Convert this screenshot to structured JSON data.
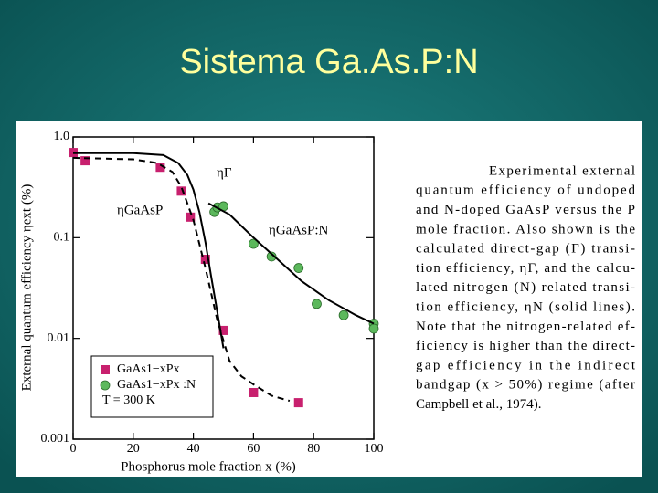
{
  "title": "Sistema Ga.As.P:N",
  "chart_data": {
    "type": "scatter",
    "x_label": "Phosphorus mole fraction x (%)",
    "y_label": "External quantum efficiency ηext (%)",
    "xlim": [
      0,
      100
    ],
    "xticks": [
      0,
      20,
      40,
      60,
      80,
      100
    ],
    "ylim": [
      0.001,
      1
    ],
    "log_y": true,
    "yticks": [
      {
        "value": 1,
        "label": "1.0"
      },
      0.1,
      0.01,
      0.001
    ],
    "annotation": "T = 300 K",
    "series": [
      {
        "name": "GaAs1−xPx",
        "color": "#c8206e",
        "marker": "square",
        "x": [
          0,
          4,
          29,
          36,
          39,
          44,
          50,
          60,
          75
        ],
        "values": [
          0.7,
          0.58,
          0.5,
          0.29,
          0.16,
          0.061,
          0.012,
          0.0029,
          0.0023
        ]
      },
      {
        "name": "GaAs1−xPx :N",
        "color": "#5cb85c",
        "marker": "circle",
        "x": [
          47,
          48,
          50,
          60,
          66,
          75,
          81,
          90,
          100,
          100
        ],
        "values": [
          0.18,
          0.2,
          0.205,
          0.087,
          0.065,
          0.05,
          0.022,
          0.017,
          0.014,
          0.0125
        ]
      },
      {
        "name": "ηΓ",
        "color": "#000000",
        "line": "solid",
        "x": [
          0,
          20,
          30,
          35,
          38,
          40,
          42,
          44,
          46,
          48,
          50
        ],
        "values": [
          0.69,
          0.69,
          0.66,
          0.55,
          0.42,
          0.3,
          0.18,
          0.09,
          0.04,
          0.018,
          0.008
        ]
      },
      {
        "name": "ηGaAsP",
        "color": "#000000",
        "line": "dashed",
        "x": [
          0,
          20,
          28,
          33,
          36,
          40,
          44,
          48,
          52,
          56,
          60,
          66,
          72
        ],
        "values": [
          0.62,
          0.6,
          0.55,
          0.45,
          0.32,
          0.15,
          0.05,
          0.015,
          0.006,
          0.0042,
          0.0035,
          0.0027,
          0.0024
        ]
      },
      {
        "name": "ηGaAsP:N",
        "color": "#000000",
        "line": "solid",
        "x": [
          45,
          52,
          60,
          67,
          76,
          85,
          94,
          100
        ],
        "values": [
          0.22,
          0.17,
          0.1,
          0.065,
          0.037,
          0.024,
          0.017,
          0.014
        ]
      }
    ],
    "caption": [
      "Experimental external",
      "quantum efficiency of undoped",
      "and N-doped GaAsP versus the P",
      "mole fraction. Also shown is the",
      "calculated direct-gap (Γ) transi-",
      "tion efficiency, ηΓ, and the calcu-",
      "lated nitrogen (N) related transi-",
      "tion efficiency, ηN (solid lines).",
      "Note that the nitrogen-related ef-",
      "ficiency is higher than the direct-",
      "gap efficiency in the indirect",
      "bandgap (x > 50%) regime (after",
      "Campbell et al., 1974)."
    ]
  }
}
